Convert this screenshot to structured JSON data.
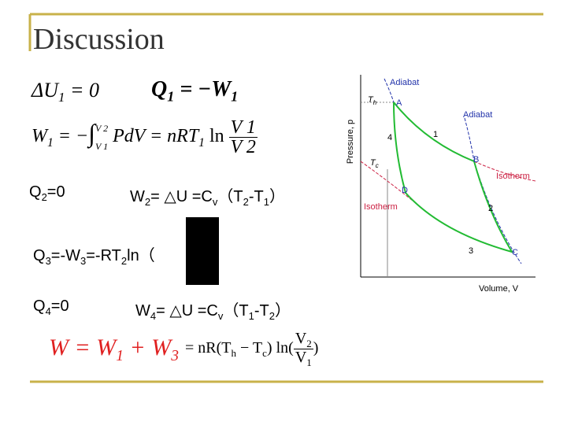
{
  "title": "Discussion",
  "eq1": {
    "a": [
      "ΔU",
      "1",
      "= 0"
    ],
    "b": [
      "Q",
      "1",
      "= −W",
      "1"
    ]
  },
  "eq2": [
    "W",
    "1",
    "= −",
    "∫",
    "V 2",
    "V 1",
    "PdV = nRT",
    "1",
    "ln",
    "V 1",
    "V 2"
  ],
  "q2": [
    "Q",
    "2",
    "=0"
  ],
  "w2": [
    "W",
    "2",
    "= △U =C",
    "v",
    "（T",
    "2",
    "-T",
    "1",
    "）"
  ],
  "q3": [
    "Q",
    "3",
    "=-W",
    "3",
    "=-RT",
    "2",
    "ln（"
  ],
  "q4": [
    "Q",
    "4",
    "=0"
  ],
  "w4": [
    "W",
    "4",
    "= △U =C",
    "v",
    "（T",
    "1",
    "-T",
    "2",
    "）"
  ],
  "total": {
    "lhs": [
      "W = W",
      "1",
      " + W",
      "3"
    ],
    "rhs": [
      "= nR(T",
      "h",
      " − T",
      "c",
      ") ln(",
      "V",
      "2",
      "V",
      "1",
      ")"
    ]
  },
  "diagram": {
    "y_axis": "Pressure, p",
    "x_axis": "Volume, V",
    "adiabat_top": "Adiabat",
    "th": [
      "T",
      "h"
    ],
    "a": "A",
    "adiabat_right": "Adiabat",
    "n1": "1",
    "n4": "4",
    "tc": [
      "T",
      "c"
    ],
    "b": "B",
    "isotherm_right": "Isotherm",
    "d": "D",
    "isotherm_left": "Isotherm",
    "n2": "2",
    "n3": "3",
    "c": "C"
  }
}
